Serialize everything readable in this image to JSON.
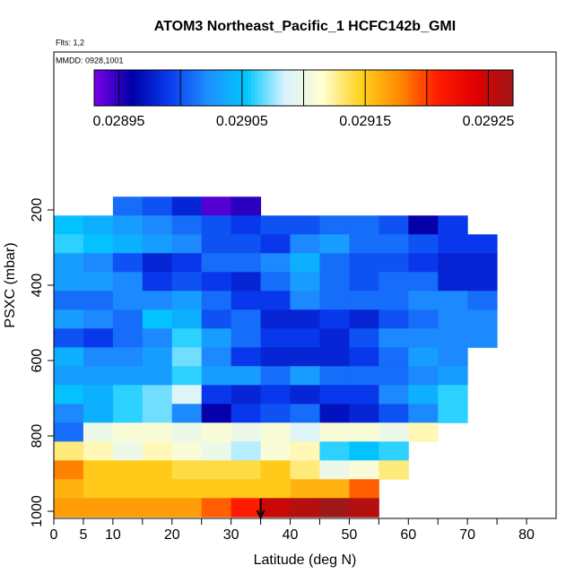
{
  "chart_data": {
    "type": "heatmap",
    "title": "ATOM3 Northeast_Pacific_1 HCFC142b_GMI",
    "flights_text": "Flts: 1,2",
    "dates_text": "MMDD: 0928,1001",
    "x_label": "Latitude (deg N)",
    "y_label": "PSXC (mbar)",
    "xlim": [
      0,
      85
    ],
    "xticks": [
      0,
      5,
      10,
      20,
      30,
      40,
      50,
      60,
      70,
      80
    ],
    "xminorticks": [
      15,
      25,
      35,
      45,
      55,
      65,
      75
    ],
    "ylim": [
      1019,
      -219
    ],
    "yticks": [
      200,
      400,
      600,
      800,
      1000
    ],
    "xbins": [
      0,
      5,
      10,
      15,
      20,
      25,
      30,
      35,
      40,
      45,
      50,
      55,
      60,
      65,
      70,
      75
    ],
    "ybins": [
      165,
      215,
      265,
      315,
      365,
      415,
      465,
      515,
      565,
      615,
      665,
      715,
      765,
      815,
      865,
      915,
      965,
      1015
    ],
    "z": [
      [
        null,
        null,
        0.02901,
        0.029,
        0.02898,
        0.02894,
        0.02895,
        null,
        null,
        null,
        null,
        null,
        null,
        null,
        null
      ],
      [
        0.02905,
        0.02904,
        0.02903,
        0.02902,
        0.02901,
        0.029,
        0.02899,
        0.029,
        0.029,
        0.02901,
        0.02901,
        0.029,
        0.02896,
        0.02899,
        null
      ],
      [
        0.02906,
        0.02905,
        0.02904,
        0.02903,
        0.02902,
        0.029,
        0.029,
        0.02899,
        0.02902,
        0.02903,
        0.02901,
        0.02901,
        0.029,
        0.02899,
        0.02899
      ],
      [
        0.02903,
        0.02902,
        0.029,
        0.02898,
        0.02899,
        0.02901,
        0.02901,
        0.02902,
        0.02904,
        0.02901,
        0.029,
        0.029,
        0.02899,
        0.02898,
        0.02898
      ],
      [
        0.02903,
        0.02903,
        0.02902,
        0.02899,
        0.029,
        0.02899,
        0.02898,
        0.02901,
        0.02903,
        0.02901,
        0.029,
        0.02901,
        0.02901,
        0.02898,
        0.02898
      ],
      [
        0.02901,
        0.02901,
        0.02902,
        0.02902,
        0.02903,
        0.02901,
        0.02899,
        0.02899,
        0.02902,
        0.02901,
        0.02901,
        0.02901,
        0.02902,
        0.02902,
        0.02901
      ],
      [
        0.02903,
        0.02902,
        0.02901,
        0.02905,
        0.02904,
        0.029,
        0.02901,
        0.02898,
        0.02898,
        0.02899,
        0.02898,
        0.029,
        0.02901,
        0.02902,
        0.02902
      ],
      [
        0.029,
        0.02899,
        0.02901,
        0.02902,
        0.02906,
        0.02903,
        0.02901,
        0.02899,
        0.02899,
        0.02898,
        0.029,
        0.02902,
        0.02902,
        0.02902,
        0.02902
      ],
      [
        0.02904,
        0.02902,
        0.02902,
        0.02903,
        0.02907,
        0.02902,
        0.02899,
        0.02898,
        0.02898,
        0.02898,
        0.02899,
        0.02901,
        0.02903,
        0.02902,
        null
      ],
      [
        0.02903,
        0.02903,
        0.02903,
        0.02903,
        0.02906,
        0.02903,
        0.02903,
        0.02901,
        0.02903,
        0.02901,
        0.02901,
        0.02901,
        0.02902,
        0.02903,
        null
      ],
      [
        0.02905,
        0.02904,
        0.02906,
        0.02907,
        0.02909,
        0.02899,
        0.02898,
        0.02899,
        0.02898,
        0.02899,
        0.02899,
        0.02902,
        0.02904,
        0.02906,
        null
      ],
      [
        0.02902,
        0.02904,
        0.02906,
        0.02907,
        0.02902,
        0.02896,
        0.02899,
        0.029,
        0.02901,
        0.02897,
        0.02898,
        0.029,
        0.02902,
        0.02906,
        null
      ],
      [
        0.02901,
        0.0291,
        0.02911,
        0.02911,
        0.0291,
        0.02911,
        0.0291,
        0.02911,
        0.02909,
        0.02911,
        0.02911,
        0.0291,
        0.02912,
        null,
        null
      ],
      [
        0.02913,
        0.02912,
        0.0291,
        0.02912,
        0.02911,
        0.0291,
        0.02908,
        0.02911,
        0.02912,
        0.02906,
        0.02905,
        0.02906,
        null,
        null,
        null
      ],
      [
        0.02918,
        0.02915,
        0.02915,
        0.02915,
        0.02914,
        0.02914,
        0.02914,
        0.02915,
        0.02913,
        0.0291,
        0.02911,
        0.02913,
        null,
        null,
        null
      ],
      [
        0.02916,
        0.02915,
        0.02915,
        0.02915,
        0.02915,
        0.02915,
        0.02915,
        0.02915,
        0.02916,
        0.02916,
        0.02919,
        null,
        null,
        null,
        null
      ],
      [
        0.02917,
        0.02917,
        0.02917,
        0.02917,
        0.02917,
        0.02919,
        0.02921,
        0.02925,
        0.02926,
        0.02927,
        0.02926,
        null,
        null,
        null,
        null
      ]
    ],
    "clim": [
      0.02893,
      0.02927
    ],
    "colormap": [
      "#7a00e6",
      "#0000a8",
      "#0a3cf0",
      "#1e90ff",
      "#00c8ff",
      "#d8f2ff",
      "#ffffd0",
      "#ffd21e",
      "#ff8c00",
      "#ff1e00",
      "#e00000",
      "#a01818"
    ],
    "cbar_ticks": [
      0.02895,
      0.02905,
      0.02915,
      0.02925
    ],
    "cbar_minor_ticks": [
      0.029,
      0.0291,
      0.0292
    ],
    "marker_lat": 35
  }
}
